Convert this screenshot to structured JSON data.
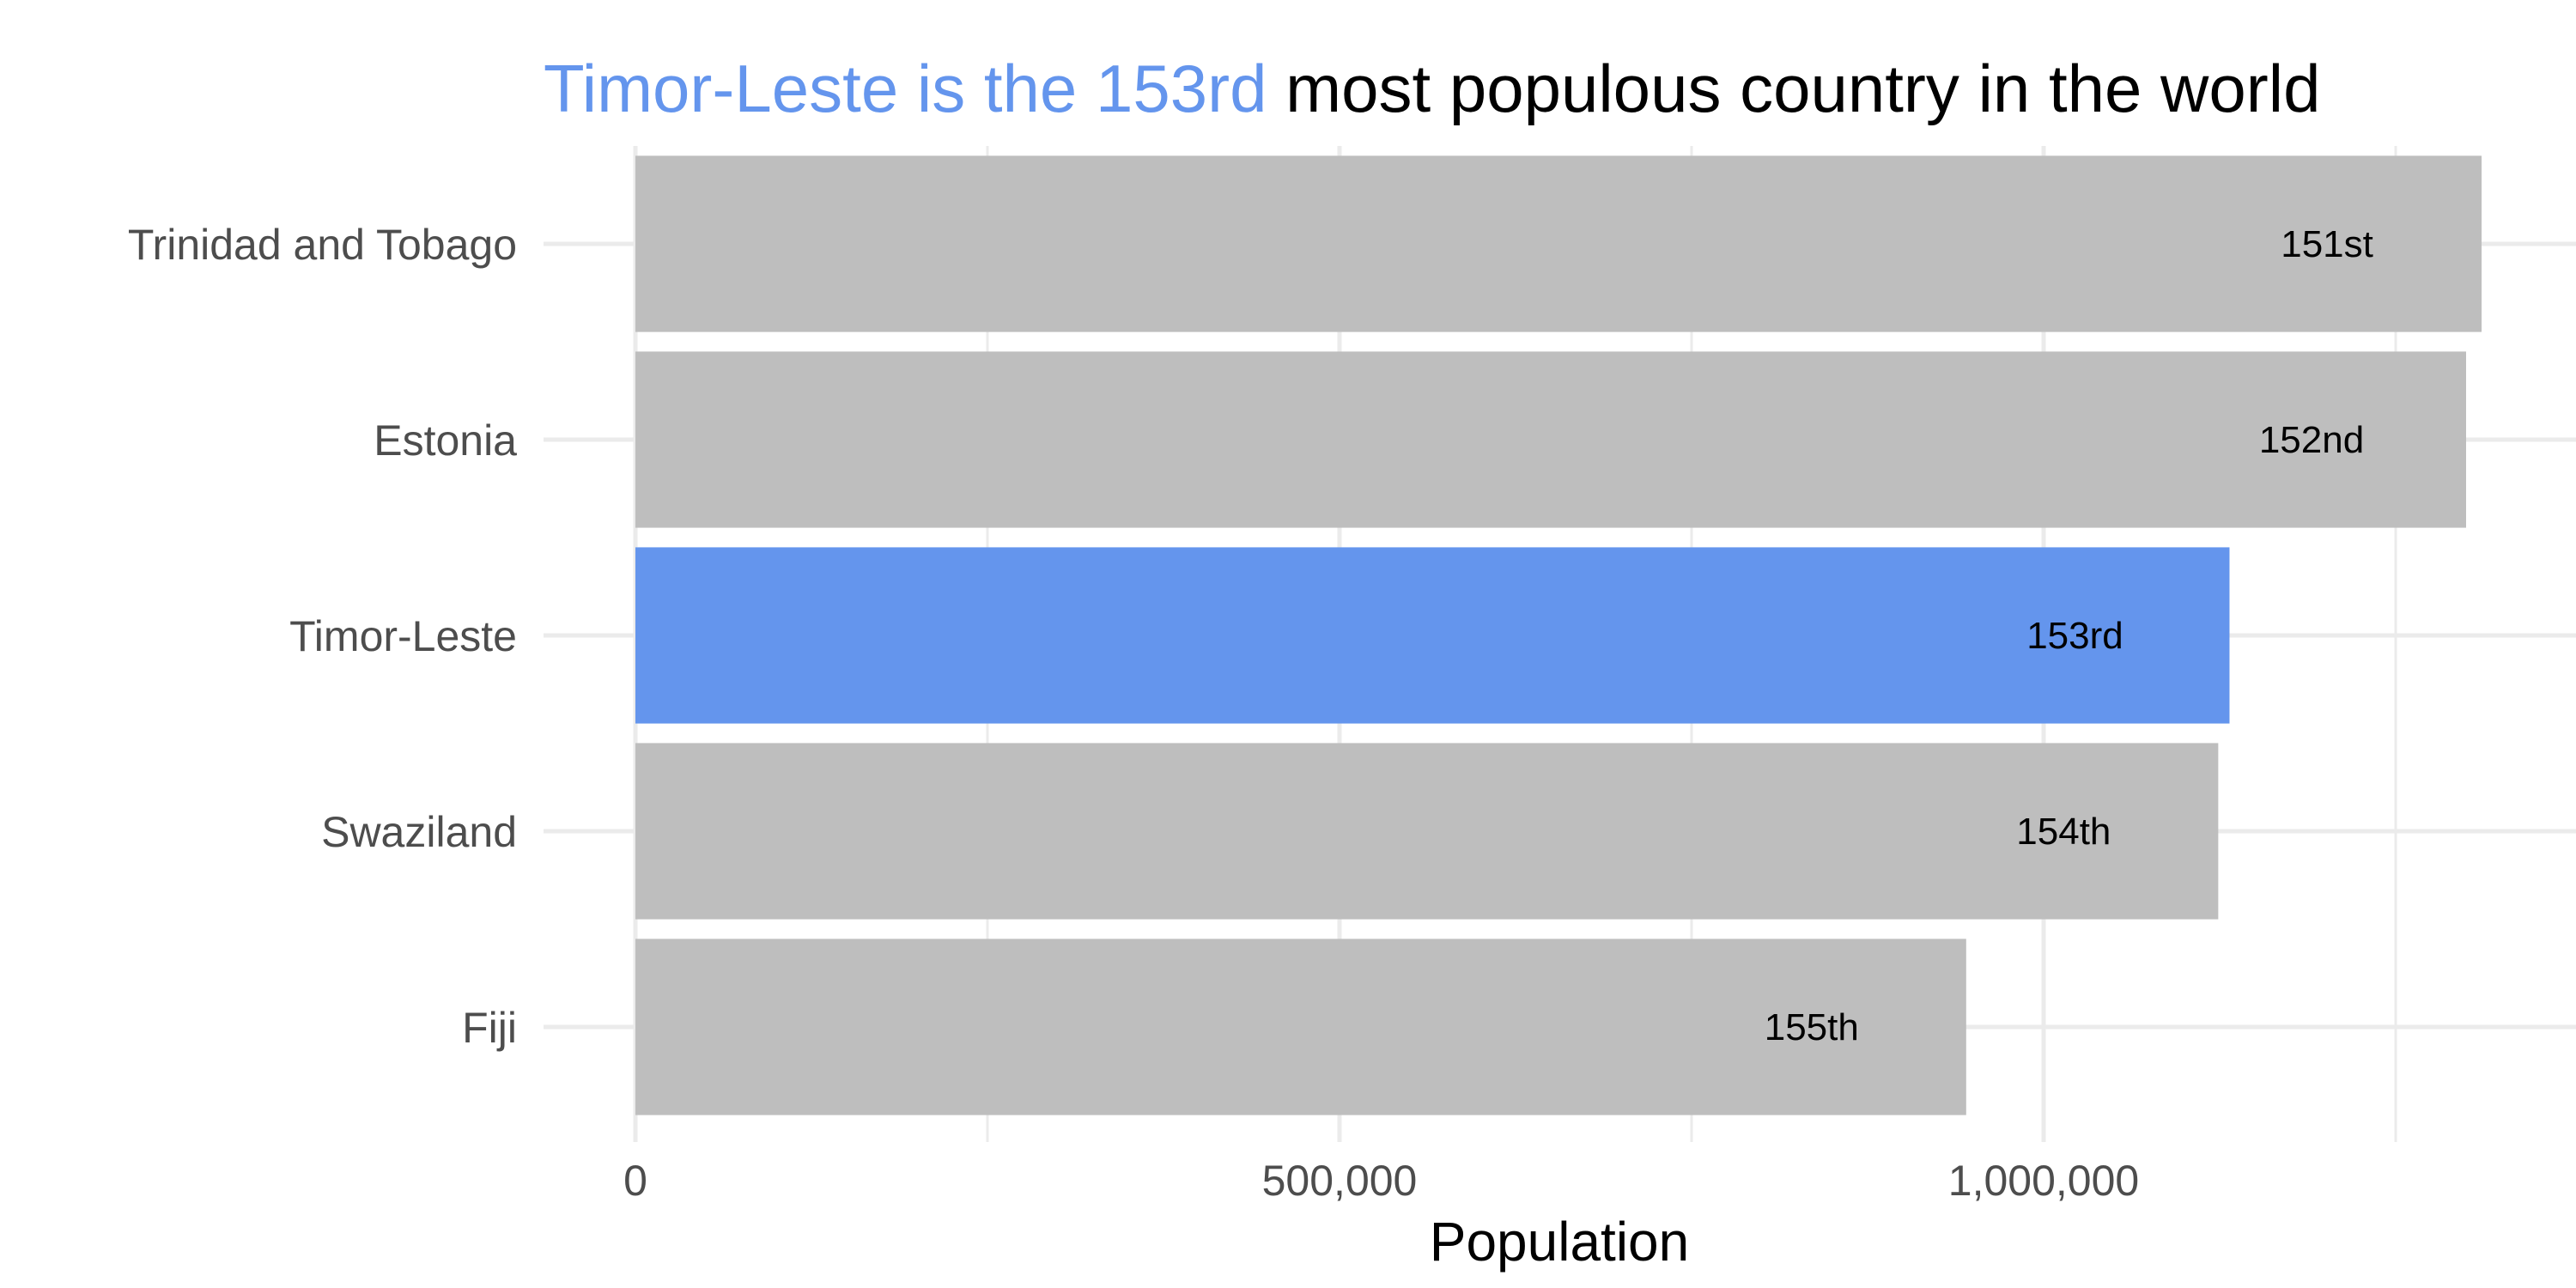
{
  "chart_data": {
    "type": "bar",
    "orientation": "horizontal",
    "title_highlight": "Timor-Leste is the 153rd",
    "title_rest": "most populous country in the world",
    "xlabel": "Population",
    "ylabel": "",
    "categories": [
      "Trinidad and Tobago",
      "Estonia",
      "Timor-Leste",
      "Swaziland",
      "Fiji"
    ],
    "values": [
      1311000,
      1300000,
      1132000,
      1124000,
      945000
    ],
    "rank_labels": [
      "151st",
      "152nd",
      "153rd",
      "154th",
      "155th"
    ],
    "highlight_category": "Timor-Leste",
    "colors": {
      "default": "#bebebe",
      "highlight": "#6495ed",
      "grid": "#ebebeb"
    },
    "xlim": [
      0,
      1380000
    ],
    "x_gridlines": [
      0,
      250000,
      500000,
      750000,
      1000000,
      1250000
    ],
    "x_ticks": [
      0,
      500000,
      1000000
    ],
    "x_tick_labels": [
      "0",
      "500,000",
      "1,000,000"
    ],
    "grid": true,
    "legend": "none"
  }
}
